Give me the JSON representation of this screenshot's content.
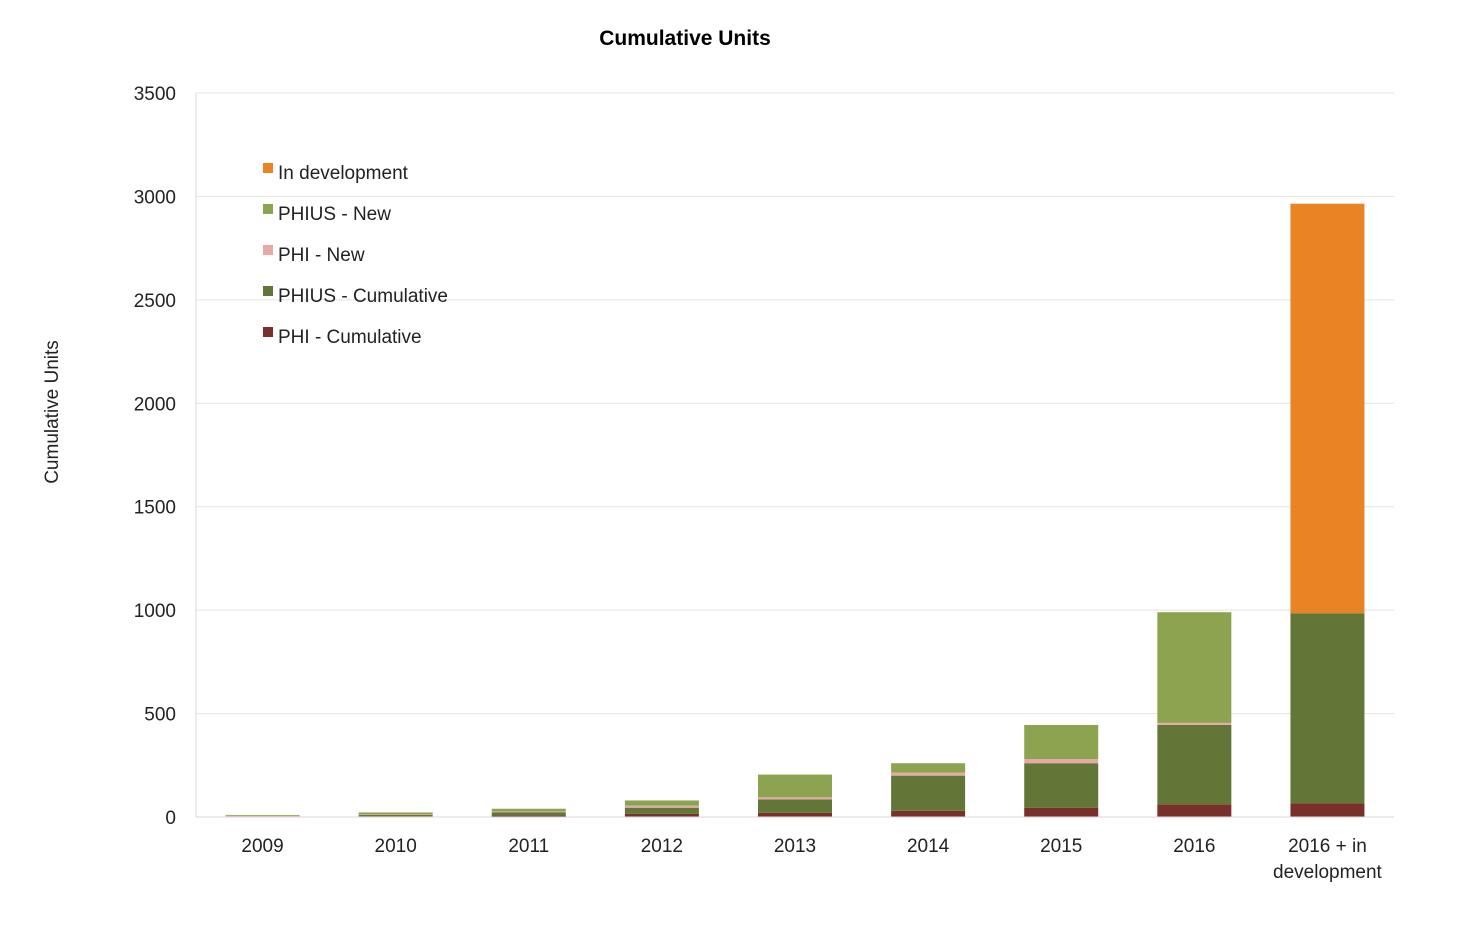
{
  "chart_data": {
    "type": "bar",
    "stacked": true,
    "title": "Cumulative Units",
    "xlabel": "",
    "ylabel": "Cumulative Units",
    "ylim": [
      0,
      3500
    ],
    "yticks": [
      0,
      500,
      1000,
      1500,
      2000,
      2500,
      3000,
      3500
    ],
    "grid": true,
    "legend_position": "top-left",
    "categories": [
      "2009",
      "2010",
      "2011",
      "2012",
      "2013",
      "2014",
      "2015",
      "2016",
      "2016 + in development"
    ],
    "series": [
      {
        "name": "PHI - Cumulative",
        "color": "#7b2f2a",
        "values": [
          2,
          4,
          8,
          15,
          20,
          30,
          45,
          60,
          65
        ]
      },
      {
        "name": "PHIUS - Cumulative",
        "color": "#617637",
        "values": [
          3,
          8,
          15,
          30,
          65,
          170,
          215,
          385,
          920
        ]
      },
      {
        "name": "PHI - New",
        "color": "#e6a9a6",
        "values": [
          1,
          2,
          4,
          10,
          10,
          15,
          20,
          10,
          0
        ]
      },
      {
        "name": "PHIUS - New",
        "color": "#8ca450",
        "values": [
          4,
          8,
          13,
          25,
          110,
          45,
          165,
          535,
          0
        ]
      },
      {
        "name": "In development",
        "color": "#e98424",
        "values": [
          0,
          0,
          0,
          0,
          0,
          0,
          0,
          0,
          1980
        ]
      }
    ]
  }
}
